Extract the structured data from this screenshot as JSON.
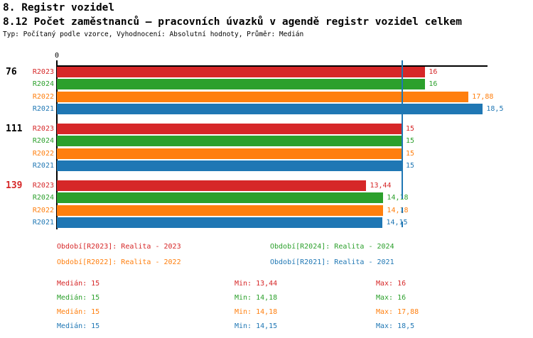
{
  "header": {
    "title": "8. Registr vozidel",
    "subtitle": "8.12 Počet zaměstnanců – pracovních úvazků v agendě registr vozidel celkem",
    "meta": "Typ: Počítaný podle vzorce, Vyhodnocení: Absolutní hodnoty, Průměr: Medián"
  },
  "colors": {
    "red": "#d62728",
    "green": "#2ca02c",
    "orange": "#ff7f0e",
    "blue": "#1f77b4",
    "axis": "#000000"
  },
  "chart_data": {
    "type": "bar",
    "orientation": "horizontal",
    "x_axis": {
      "zero_label": "0",
      "min": 0,
      "max": 18.5,
      "grid": false
    },
    "median_value": 15,
    "median_color": "#1f77b4",
    "highlight_color": "#d62728",
    "series": [
      {
        "name": "R2023",
        "color": "#d62728"
      },
      {
        "name": "R2024",
        "color": "#2ca02c"
      },
      {
        "name": "R2022",
        "color": "#ff7f0e"
      },
      {
        "name": "R2021",
        "color": "#1f77b4"
      }
    ],
    "groups": [
      {
        "label": "76",
        "highlight": false,
        "bars": [
          {
            "series": "R2023",
            "value": 16,
            "display": "16"
          },
          {
            "series": "R2024",
            "value": 16,
            "display": "16"
          },
          {
            "series": "R2022",
            "value": 17.88,
            "display": "17,88"
          },
          {
            "series": "R2021",
            "value": 18.5,
            "display": "18,5"
          }
        ]
      },
      {
        "label": "111",
        "highlight": false,
        "bars": [
          {
            "series": "R2023",
            "value": 15,
            "display": "15"
          },
          {
            "series": "R2024",
            "value": 15,
            "display": "15"
          },
          {
            "series": "R2022",
            "value": 15,
            "display": "15"
          },
          {
            "series": "R2021",
            "value": 15,
            "display": "15"
          }
        ]
      },
      {
        "label": "139",
        "highlight": true,
        "bars": [
          {
            "series": "R2023",
            "value": 13.44,
            "display": "13,44"
          },
          {
            "series": "R2024",
            "value": 14.18,
            "display": "14,18"
          },
          {
            "series": "R2022",
            "value": 14.18,
            "display": "14,18"
          },
          {
            "series": "R2021",
            "value": 14.15,
            "display": "14,15"
          }
        ]
      }
    ]
  },
  "legend": [
    {
      "text": "Období[R2023]: Realita - 2023",
      "color": "#d62728"
    },
    {
      "text": "Období[R2024]: Realita - 2024",
      "color": "#2ca02c"
    },
    {
      "text": "Období[R2022]: Realita - 2022",
      "color": "#ff7f0e"
    },
    {
      "text": "Období[R2021]: Realita - 2021",
      "color": "#1f77b4"
    }
  ],
  "stats": [
    {
      "color": "#d62728",
      "median": "Medián: 15",
      "min": "Min: 13,44",
      "max": "Max: 16"
    },
    {
      "color": "#2ca02c",
      "median": "Medián: 15",
      "min": "Min: 14,18",
      "max": "Max: 16"
    },
    {
      "color": "#ff7f0e",
      "median": "Medián: 15",
      "min": "Min: 14,18",
      "max": "Max: 17,88"
    },
    {
      "color": "#1f77b4",
      "median": "Medián: 15",
      "min": "Min: 14,15",
      "max": "Max: 18,5"
    }
  ]
}
